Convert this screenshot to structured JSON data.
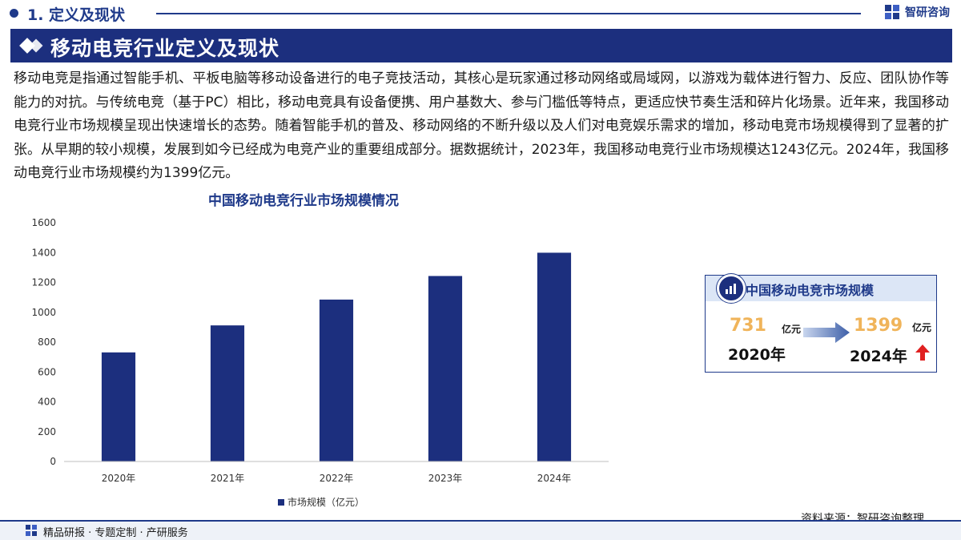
{
  "header": {
    "section_label": "1. 定义及现状",
    "brand_name": "智研咨询",
    "brand_icon": "zhiyan-logo-icon",
    "accent_color": "#1f3a8a"
  },
  "title": "移动电竞行业定义及现状",
  "intro_paragraph": "移动电竞是指通过智能手机、平板电脑等移动设备进行的电子竞技活动，其核心是玩家通过移动网络或局域网，以游戏为载体进行智力、反应、团队协作等能力的对抗。与传统电竞（基于PC）相比，移动电竞具有设备便携、用户基数大、参与门槛低等特点，更适应快节奏生活和碎片化场景。近年来，我国移动电竞行业市场规模呈现出快速增长的态势。随着智能手机的普及、移动网络的不断升级以及人们对电竞娱乐需求的增加，移动电竞市场规模得到了显著的扩张。从早期的较小规模，发展到如今已经成为电竞产业的重要组成部分。据数据统计，2023年，我国移动电竞行业市场规模达1243亿元。2024年，我国移动电竞行业市场规模约为1399亿元。",
  "chart_data": {
    "type": "bar",
    "title": "中国移动电竞行业市场规模情况",
    "categories": [
      "2020年",
      "2021年",
      "2022年",
      "2023年",
      "2024年"
    ],
    "series": [
      {
        "name": "市场规模（亿元）",
        "values": [
          731,
          912,
          1085,
          1243,
          1399
        ],
        "color": "#1c2f7e"
      }
    ],
    "yticks": [
      0,
      200,
      400,
      600,
      800,
      1000,
      1200,
      1400,
      1600
    ],
    "ylim": [
      0,
      1600
    ],
    "grid": false,
    "legend_position": "bottom-center"
  },
  "summary_card": {
    "title": "中国移动电竞市场规模",
    "start_value": "731",
    "start_unit": "亿元",
    "start_year": "2020年",
    "end_value": "1399",
    "end_unit": "亿元",
    "end_year": "2024年",
    "icon": "chart-icon",
    "value_color": "#f0b45a",
    "up_arrow_color": "#e02020"
  },
  "source": "资料来源：智研咨询整理",
  "footer_text": "精品研报 · 专题定制 · 产研服务"
}
